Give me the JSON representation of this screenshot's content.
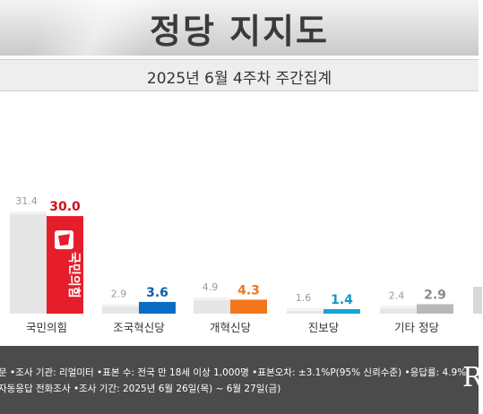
{
  "header": {
    "title": "정당 지지도",
    "subtitle": "2025년 6월 4주차 주간집계"
  },
  "chart_data": {
    "type": "bar",
    "title": "정당 지지도",
    "subtitle": "2025년 6월 4주차 주간집계",
    "categories": [
      "국민의힘",
      "조국혁신당",
      "개혁신당",
      "진보당",
      "기타 정당"
    ],
    "series": [
      {
        "values": [
          31.4,
          2.9,
          4.9,
          1.6,
          2.4
        ],
        "color": "#e6e6e6",
        "label_color": "#999999"
      },
      {
        "values": [
          30.0,
          3.6,
          4.3,
          1.4,
          2.9
        ],
        "colors": [
          "#e61e2b",
          "#0b6cc4",
          "#f2761c",
          "#1aa3d6",
          "#b8b8b8"
        ],
        "label_colors": [
          "#d0101e",
          "#0b5fae",
          "#f2761c",
          "#1797c8",
          "#8a8a8a"
        ]
      }
    ],
    "ylim": [
      0,
      32
    ],
    "grid": false,
    "party_logo_text": "국민의힘"
  },
  "footer": {
    "note1": "문 •조사 기관: 리얼미터 •표본 수: 전국 만 18세 이상 1,000명 •표본오차: ±3.1%P(95% 신뢰수준) •응답률: 4.9%",
    "note2": "자동응답 전화조사 •조사 기간: 2025년 6월 26일(목) ~ 6월 27일(금)",
    "logo": "R"
  }
}
